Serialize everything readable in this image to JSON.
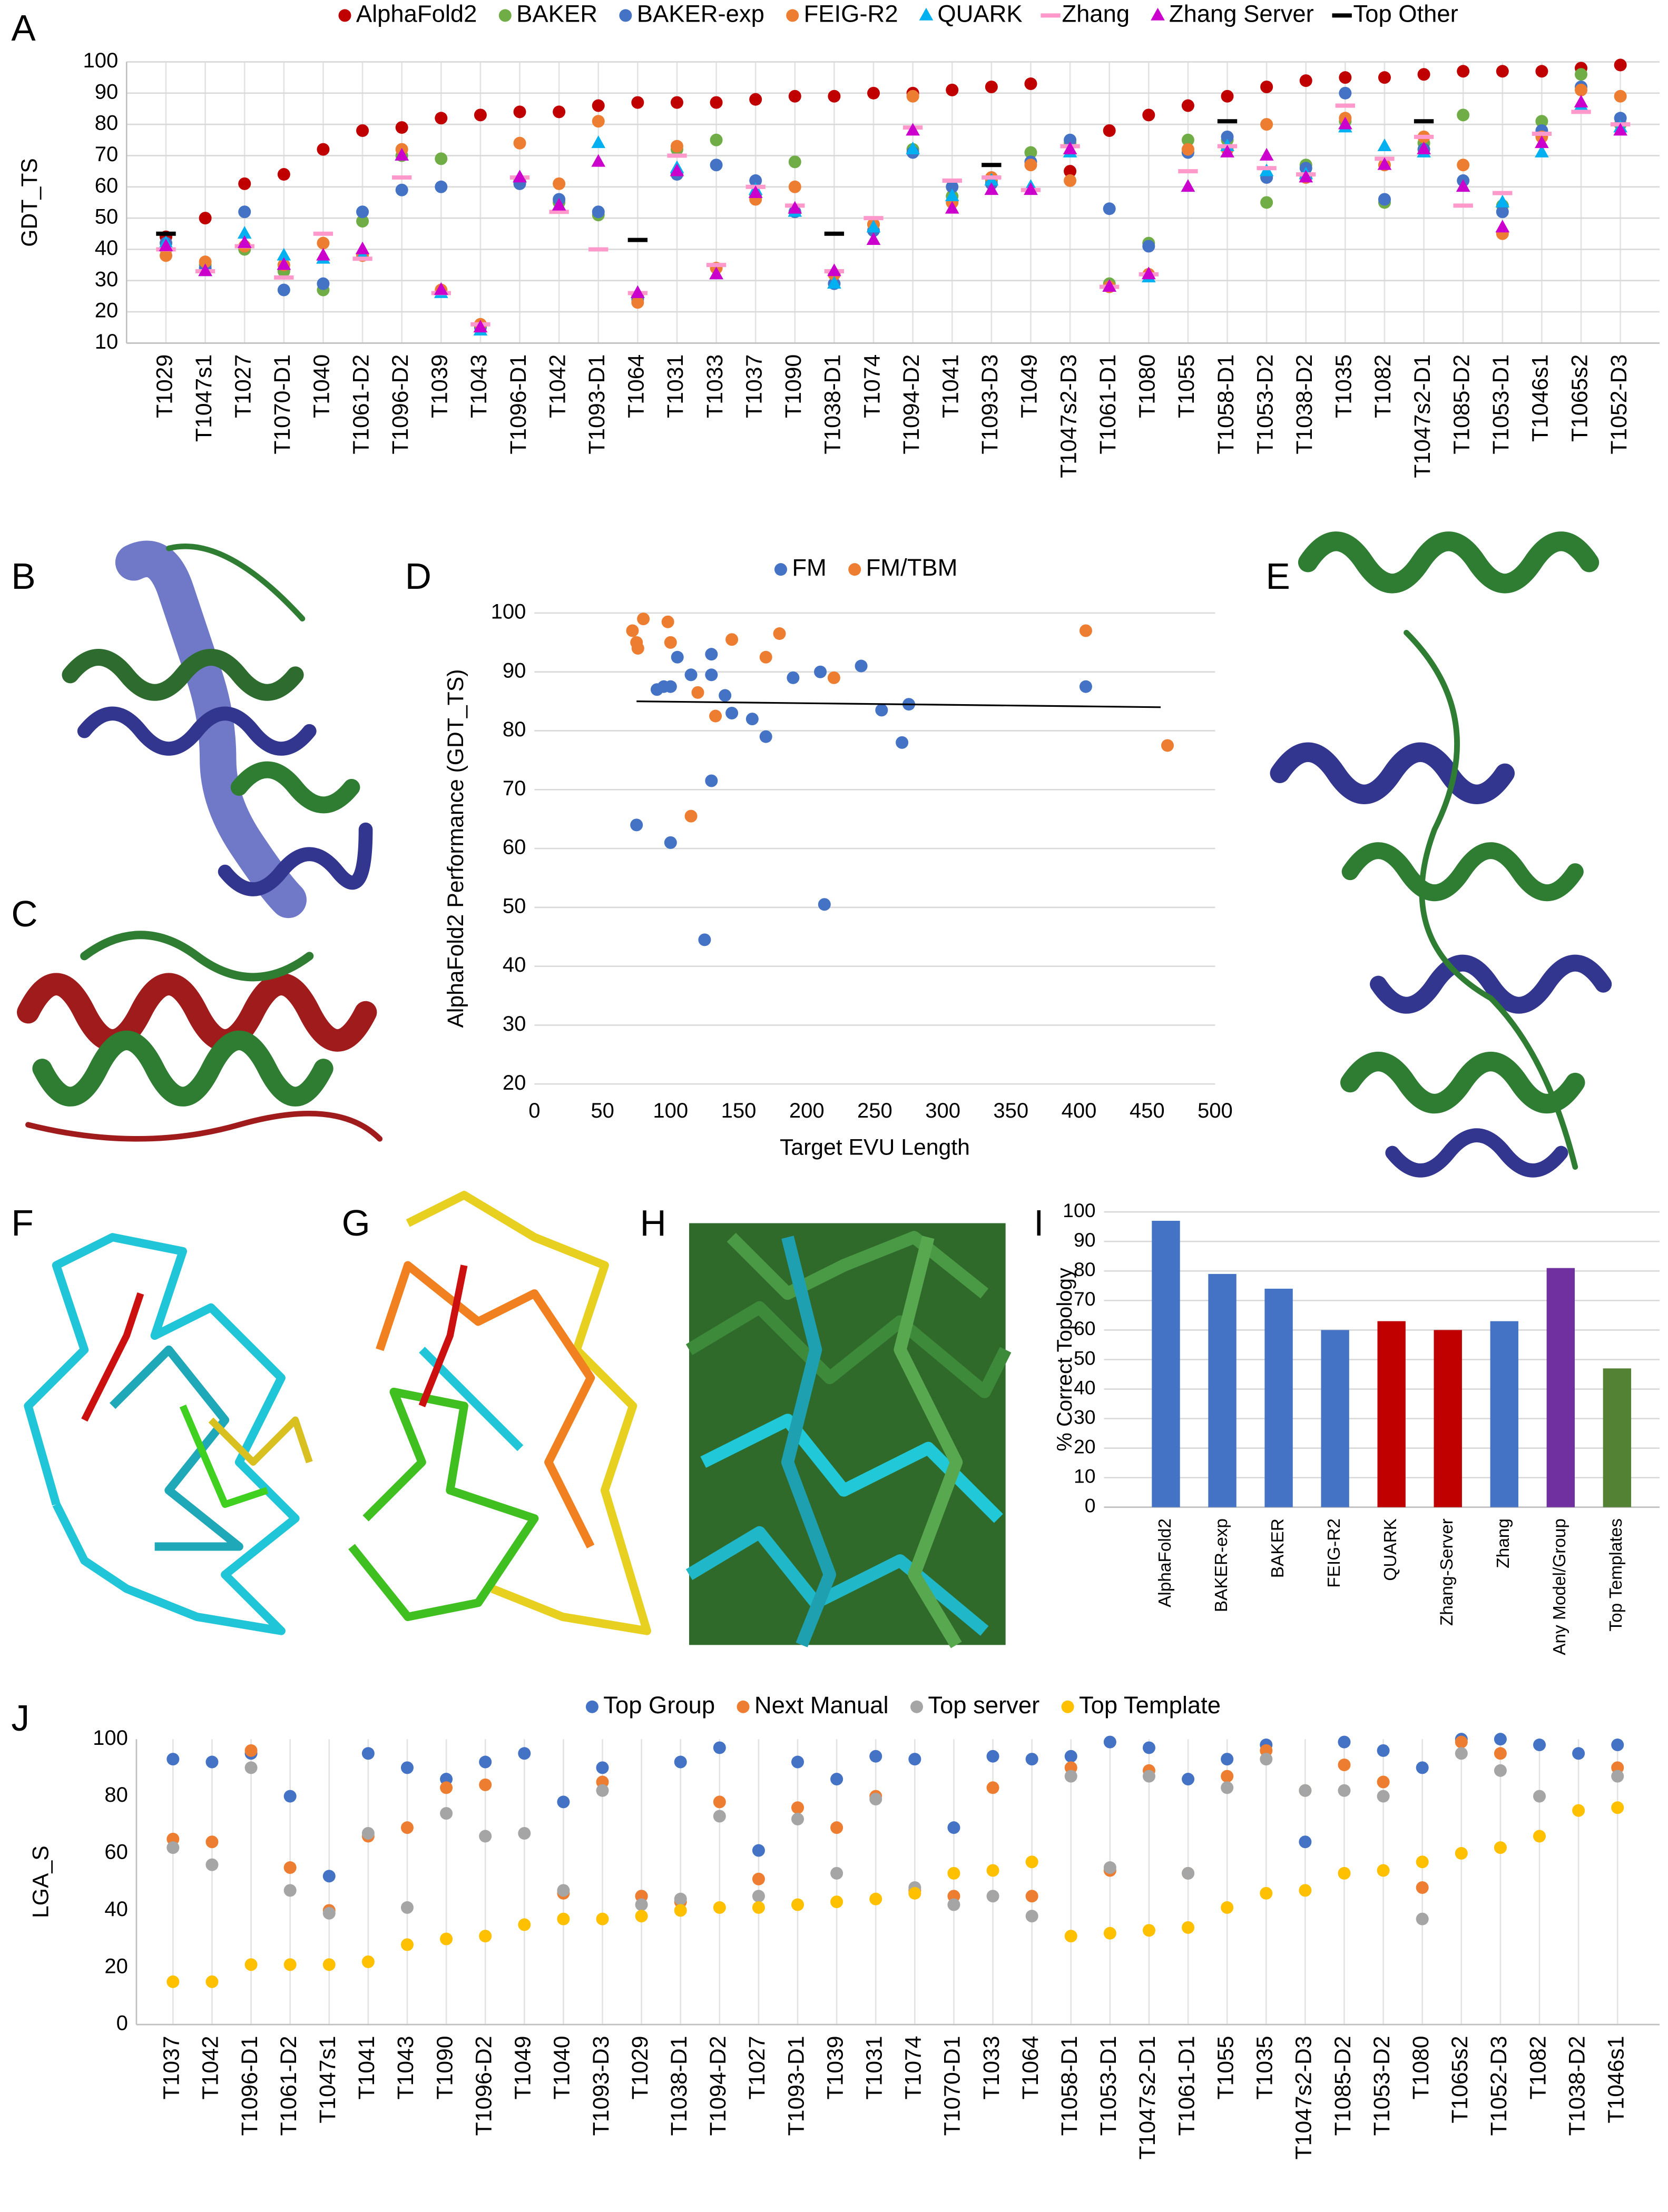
{
  "image_panels": [
    "B",
    "C",
    "E",
    "F",
    "G",
    "H"
  ],
  "chart_data": [
    {
      "panel": "A",
      "type": "dot",
      "ylabel": "GDT_TS",
      "ylim": [
        10,
        100
      ],
      "yticks": [
        10,
        20,
        30,
        40,
        50,
        60,
        70,
        80,
        90,
        100
      ],
      "grid": true,
      "categories": [
        "T1029",
        "T1047s1",
        "T1027",
        "T1070-D1",
        "T1040",
        "T1061-D2",
        "T1096-D2",
        "T1039",
        "T1043",
        "T1096-D1",
        "T1042",
        "T1093-D1",
        "T1064",
        "T1031",
        "T1033",
        "T1037",
        "T1090",
        "T1038-D1",
        "T1074",
        "T1094-D2",
        "T1041",
        "T1093-D3",
        "T1049",
        "T1047s2-D3",
        "T1061-D1",
        "T1080",
        "T1055",
        "T1058-D1",
        "T1053-D2",
        "T1038-D2",
        "T1035",
        "T1082",
        "T1047s2-D1",
        "T1085-D2",
        "T1053-D1",
        "T1046s1",
        "T1065s2",
        "T1052-D3"
      ],
      "category_colors": [
        "#000000",
        "#000000",
        "#000000",
        "#000000",
        "#000000",
        "#000000",
        "#000000",
        "#000000",
        "#000000",
        "#000000",
        "#000000",
        "#000000",
        "#000000",
        "#000000",
        "#000000",
        "#000000",
        "#000000",
        "#000000",
        "#000000",
        "#000000",
        "#000000",
        "#000000",
        "#000000",
        "#808080",
        "#808080",
        "#808080",
        "#808080",
        "#808080",
        "#808080",
        "#808080",
        "#808080",
        "#808080",
        "#808080",
        "#808080",
        "#808080",
        "#808080",
        "#808080",
        "#808080"
      ],
      "series": [
        {
          "name": "AlphaFold2",
          "color": "#c00000",
          "marker": "circle",
          "values": [
            44,
            50,
            61,
            64,
            72,
            78,
            79,
            82,
            83,
            84,
            84,
            86,
            87,
            87,
            87,
            88,
            89,
            89,
            90,
            90,
            91,
            92,
            93,
            65,
            78,
            83,
            86,
            89,
            92,
            94,
            95,
            95,
            96,
            97,
            97,
            97,
            98,
            99
          ]
        },
        {
          "name": "BAKER",
          "color": "#70ad47",
          "marker": "circle",
          "values": [
            40,
            35,
            40,
            33,
            27,
            49,
            70,
            69,
            16,
            62,
            55,
            51,
            25,
            72,
            75,
            57,
            68,
            32,
            48,
            72,
            57,
            62,
            71,
            74,
            29,
            42,
            75,
            75,
            55,
            67,
            81,
            55,
            74,
            83,
            54,
            81,
            96,
            80
          ]
        },
        {
          "name": "BAKER-exp",
          "color": "#4472c4",
          "marker": "circle",
          "values": [
            42,
            34,
            52,
            27,
            29,
            52,
            59,
            60,
            15,
            61,
            56,
            52,
            24,
            64,
            67,
            62,
            52,
            29,
            46,
            71,
            60,
            61,
            68,
            75,
            53,
            41,
            71,
            76,
            63,
            66,
            90,
            56,
            72,
            62,
            52,
            78,
            92,
            82
          ]
        },
        {
          "name": "FEIG-R2",
          "color": "#ed7d31",
          "marker": "circle",
          "values": [
            38,
            36,
            41,
            35,
            42,
            38,
            72,
            27,
            16,
            74,
            61,
            81,
            23,
            73,
            34,
            56,
            60,
            32,
            48,
            89,
            55,
            63,
            67,
            62,
            28,
            32,
            72,
            72,
            80,
            63,
            82,
            67,
            76,
            67,
            45,
            76,
            91,
            89
          ]
        },
        {
          "name": "QUARK",
          "color": "#00b0f0",
          "marker": "triangle",
          "values": [
            42,
            33,
            45,
            38,
            37,
            38,
            70,
            26,
            14,
            63,
            54,
            74,
            26,
            66,
            32,
            59,
            52,
            29,
            47,
            72,
            57,
            62,
            60,
            71,
            28,
            31,
            60,
            73,
            65,
            64,
            79,
            73,
            71,
            60,
            55,
            71,
            86,
            79
          ]
        },
        {
          "name": "Zhang",
          "color": "#ff99cc",
          "marker": "dash",
          "values": [
            40,
            33,
            41,
            31,
            45,
            37,
            63,
            26,
            16,
            63,
            52,
            40,
            26,
            70,
            35,
            60,
            54,
            33,
            50,
            79,
            62,
            63,
            59,
            73,
            28,
            32,
            65,
            73,
            66,
            64,
            86,
            69,
            76,
            54,
            58,
            77,
            84,
            80
          ]
        },
        {
          "name": "Zhang Server",
          "color": "#cc00cc",
          "marker": "triangle",
          "values": [
            41,
            33,
            42,
            35,
            38,
            40,
            70,
            27,
            15,
            63,
            54,
            68,
            26,
            65,
            32,
            58,
            53,
            33,
            43,
            78,
            53,
            59,
            59,
            72,
            28,
            32,
            60,
            71,
            70,
            63,
            80,
            67,
            72,
            60,
            47,
            74,
            87,
            78
          ]
        },
        {
          "name": "Top Other",
          "color": "#000000",
          "marker": "dash",
          "values": [
            45,
            null,
            null,
            null,
            null,
            null,
            null,
            null,
            null,
            null,
            null,
            null,
            43,
            null,
            null,
            null,
            null,
            45,
            null,
            null,
            null,
            67,
            null,
            null,
            null,
            null,
            null,
            81,
            null,
            null,
            null,
            null,
            81,
            null,
            null,
            null,
            null,
            null
          ]
        }
      ]
    },
    {
      "panel": "D",
      "type": "scatter",
      "xlabel": "Target EVU Length",
      "ylabel": "AlphaFold2 Performance (GDT_TS)",
      "xlim": [
        0,
        500
      ],
      "xticks": [
        0,
        50,
        100,
        150,
        200,
        250,
        300,
        350,
        400,
        450,
        500
      ],
      "ylim": [
        20,
        100
      ],
      "yticks": [
        20,
        30,
        40,
        50,
        60,
        70,
        80,
        90,
        100
      ],
      "grid": true,
      "series": [
        {
          "name": "FM",
          "color": "#4472c4",
          "x": [
            75,
            90,
            95,
            100,
            100,
            105,
            115,
            125,
            130,
            130,
            130,
            140,
            145,
            160,
            170,
            190,
            210,
            213,
            240,
            255,
            270,
            275,
            405
          ],
          "y": [
            64,
            87,
            87.5,
            61,
            87.5,
            92.5,
            89.5,
            44.5,
            71.5,
            89.5,
            93,
            86,
            83,
            82,
            79,
            89,
            90,
            50.5,
            91,
            83.5,
            78,
            84.5,
            87.5
          ]
        },
        {
          "name": "FM/TBM",
          "color": "#ed7d31",
          "x": [
            72,
            75,
            76,
            80,
            98,
            100,
            115,
            120,
            133,
            145,
            170,
            180,
            220,
            405,
            465
          ],
          "y": [
            97,
            95,
            94,
            99,
            98.5,
            95,
            65.5,
            86.5,
            82.5,
            95.5,
            92.5,
            96.5,
            89,
            97,
            77.5
          ]
        }
      ],
      "trend_line": {
        "color": "#000000",
        "x": [
          75,
          460
        ],
        "y": [
          85,
          84
        ]
      }
    },
    {
      "panel": "I",
      "type": "bar",
      "ylabel": "% Correct Topology",
      "ylim": [
        0,
        100
      ],
      "yticks": [
        0,
        10,
        20,
        30,
        40,
        50,
        60,
        70,
        80,
        90,
        100
      ],
      "grid": true,
      "categories": [
        "AlphaFold2",
        "BAKER-exp",
        "BAKER",
        "FEIG-R2",
        "QUARK",
        "Zhang-Server",
        "Zhang",
        "Any Model/Group",
        "Top Templates"
      ],
      "values": [
        97,
        79,
        74,
        60,
        63,
        60,
        63,
        81,
        47
      ],
      "colors": [
        "#4472c4",
        "#4472c4",
        "#4472c4",
        "#4472c4",
        "#c00000",
        "#c00000",
        "#4472c4",
        "#7030a0",
        "#548235"
      ]
    },
    {
      "panel": "J",
      "type": "dot",
      "ylabel": "LGA_S",
      "ylim": [
        0,
        100
      ],
      "yticks": [
        0,
        20,
        40,
        60,
        80,
        100
      ],
      "grid": false,
      "categories": [
        "T1037",
        "T1042",
        "T1096-D1",
        "T1061-D2",
        "T1047s1",
        "T1041",
        "T1043",
        "T1090",
        "T1096-D2",
        "T1049",
        "T1040",
        "T1093-D3",
        "T1029",
        "T1038-D1",
        "T1094-D2",
        "T1027",
        "T1093-D1",
        "T1039",
        "T1031",
        "T1074",
        "T1070-D1",
        "T1033",
        "T1064",
        "T1058-D1",
        "T1053-D1",
        "T1047s2-D1",
        "T1061-D1",
        "T1055",
        "T1035",
        "T1047s2-D3",
        "T1085-D2",
        "T1053-D2",
        "T1080",
        "T1065s2",
        "T1052-D3",
        "T1082",
        "T1038-D2",
        "T1046s1"
      ],
      "category_colors": [
        "#000000",
        "#000000",
        "#000000",
        "#000000",
        "#000000",
        "#000000",
        "#000000",
        "#000000",
        "#000000",
        "#000000",
        "#000000",
        "#000000",
        "#000000",
        "#000000",
        "#000000",
        "#000000",
        "#000000",
        "#000000",
        "#000000",
        "#000000",
        "#000000",
        "#000000",
        "#000000",
        "#808080",
        "#808080",
        "#808080",
        "#808080",
        "#808080",
        "#808080",
        "#808080",
        "#808080",
        "#808080",
        "#808080",
        "#808080",
        "#808080",
        "#808080",
        "#808080",
        "#808080"
      ],
      "series": [
        {
          "name": "Top Group",
          "color": "#4472c4",
          "marker": "circle",
          "values": [
            93,
            92,
            95,
            80,
            52,
            95,
            90,
            86,
            92,
            95,
            78,
            90,
            45,
            92,
            97,
            61,
            92,
            86,
            94,
            93,
            69,
            94,
            93,
            94,
            99,
            97,
            86,
            93,
            98,
            64,
            99,
            96,
            90,
            100,
            100,
            98,
            95,
            98
          ]
        },
        {
          "name": "Next Manual",
          "color": "#ed7d31",
          "marker": "circle",
          "values": [
            65,
            64,
            96,
            55,
            40,
            66,
            69,
            83,
            84,
            null,
            46,
            85,
            45,
            43,
            78,
            51,
            76,
            69,
            80,
            47,
            45,
            83,
            45,
            90,
            54,
            89,
            53,
            87,
            96,
            82,
            91,
            85,
            48,
            99,
            95,
            null,
            null,
            90
          ]
        },
        {
          "name": "Top server",
          "color": "#a5a5a5",
          "marker": "circle",
          "values": [
            62,
            56,
            90,
            47,
            39,
            67,
            41,
            74,
            66,
            67,
            47,
            82,
            42,
            44,
            73,
            45,
            72,
            53,
            79,
            48,
            42,
            45,
            38,
            87,
            55,
            87,
            53,
            83,
            93,
            82,
            82,
            80,
            37,
            95,
            89,
            80,
            null,
            87
          ]
        },
        {
          "name": "Top Template",
          "color": "#ffc000",
          "marker": "circle",
          "values": [
            15,
            15,
            21,
            21,
            21,
            22,
            28,
            30,
            31,
            35,
            37,
            37,
            38,
            40,
            41,
            41,
            42,
            43,
            44,
            46,
            53,
            54,
            57,
            31,
            32,
            33,
            34,
            41,
            46,
            47,
            53,
            54,
            57,
            60,
            62,
            66,
            75,
            76
          ]
        }
      ]
    }
  ]
}
